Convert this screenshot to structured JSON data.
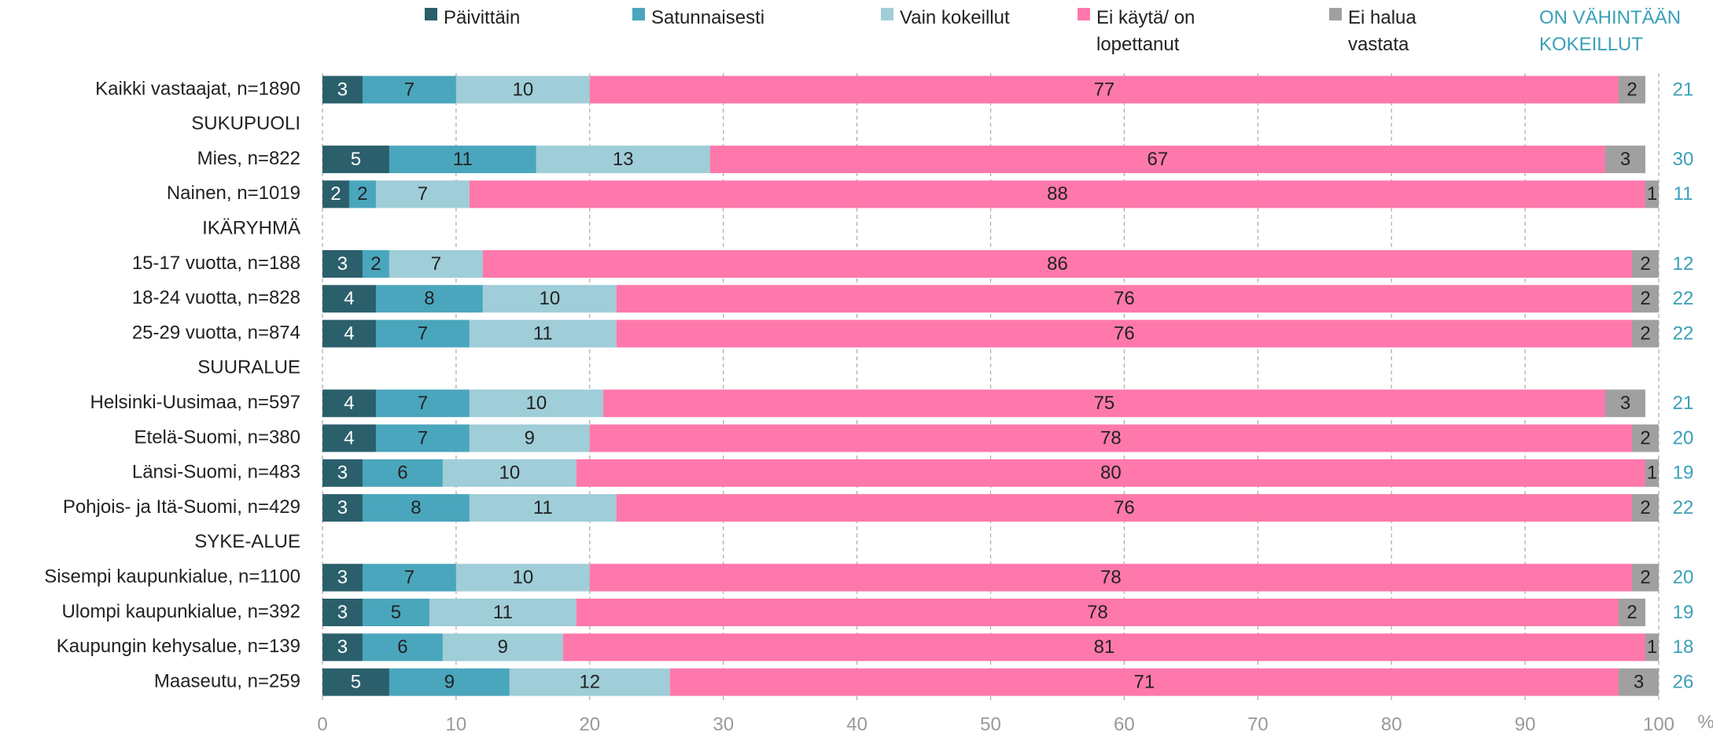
{
  "chart_data": {
    "type": "stacked_bar_horizontal",
    "categories": [
      "Kaikki vastaajat, n=1890",
      "SUKUPUOLI",
      "Mies, n=822",
      "Nainen, n=1019",
      "IKÄRYHMÄ",
      "15-17 vuotta, n=188",
      "18-24 vuotta, n=828",
      "25-29 vuotta, n=874",
      "SUURALUE",
      "Helsinki-Uusimaa, n=597",
      "Etelä-Suomi, n=380",
      "Länsi-Suomi, n=483",
      "Pohjois- ja Itä-Suomi, n=429",
      "SYKE-ALUE",
      "Sisempi kaupunkialue, n=1100",
      "Ulompi kaupunkialue, n=392",
      "Kaupungin kehysalue, n=139",
      "Maaseutu, n=259"
    ],
    "series": [
      {
        "name": "Päivittäin",
        "color": "#2b5f6c",
        "values": [
          3,
          null,
          5,
          2,
          null,
          3,
          4,
          4,
          null,
          4,
          4,
          3,
          3,
          null,
          3,
          3,
          3,
          5
        ]
      },
      {
        "name": "Satunnaisesti",
        "color": "#4aa6bc",
        "values": [
          7,
          null,
          11,
          2,
          null,
          2,
          8,
          7,
          null,
          7,
          7,
          6,
          8,
          null,
          7,
          5,
          6,
          9
        ]
      },
      {
        "name": "Vain kokeillut",
        "color": "#9fcdd8",
        "values": [
          10,
          null,
          13,
          7,
          null,
          7,
          10,
          11,
          null,
          10,
          9,
          10,
          11,
          null,
          10,
          11,
          9,
          12
        ]
      },
      {
        "name": "Ei käytä/ on lopettanut",
        "color": "#ff78ab",
        "values": [
          77,
          null,
          67,
          88,
          null,
          86,
          76,
          76,
          null,
          75,
          78,
          80,
          76,
          null,
          78,
          78,
          81,
          71
        ]
      },
      {
        "name": "Ei halua vastata",
        "color": "#a0a0a0",
        "values": [
          2,
          null,
          3,
          1,
          null,
          2,
          2,
          2,
          null,
          3,
          2,
          1,
          2,
          null,
          2,
          2,
          1,
          3
        ]
      }
    ],
    "totals": {
      "title": "ON VÄHINTÄÄN KOKEILLUT",
      "color": "#3aa0b8",
      "values": [
        21,
        null,
        30,
        11,
        null,
        12,
        22,
        22,
        null,
        21,
        20,
        19,
        22,
        null,
        20,
        19,
        18,
        26
      ]
    },
    "xlim": [
      0,
      100
    ],
    "xticks": [
      0,
      10,
      20,
      30,
      40,
      50,
      60,
      70,
      80,
      90,
      100
    ],
    "x_unit": "%",
    "grid": true
  }
}
